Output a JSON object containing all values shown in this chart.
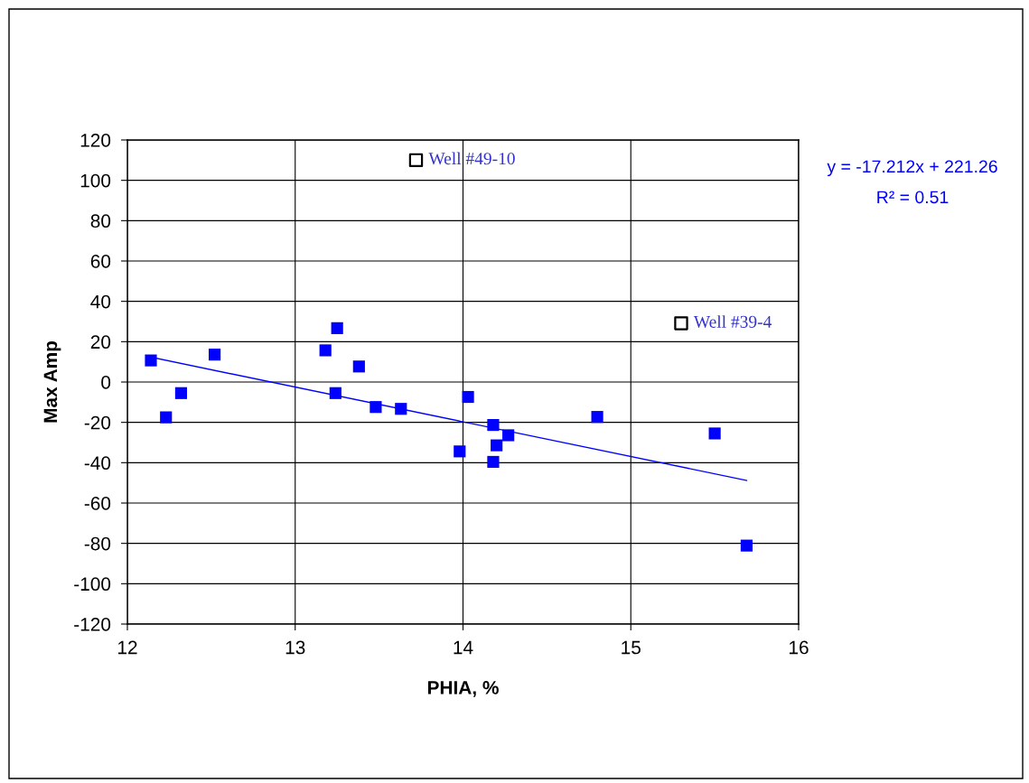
{
  "chart_data": {
    "type": "scatter",
    "xlabel": "PHIA, %",
    "ylabel": "Max Amp",
    "xlim": [
      12,
      16
    ],
    "xticks": [
      12,
      13,
      14,
      15,
      16
    ],
    "ylim": [
      -120,
      120
    ],
    "yticks": [
      -120,
      -100,
      -80,
      -60,
      -40,
      -20,
      0,
      20,
      40,
      60,
      80,
      100,
      120
    ],
    "grid": true,
    "marker": "square",
    "series": [
      {
        "color": "#0000ff",
        "x": [
          12.14,
          12.23,
          12.32,
          12.52,
          13.18,
          13.25,
          13.24,
          13.38,
          13.48,
          13.63,
          13.98,
          14.03,
          14.18,
          14.27,
          14.2,
          14.18,
          14.8,
          15.5,
          15.69
        ],
        "values": [
          10.7,
          -17.5,
          -5.5,
          13.6,
          15.7,
          26.7,
          -5.5,
          7.7,
          -12.4,
          -13.3,
          -34.4,
          -7.4,
          -21.3,
          -26.4,
          -31.4,
          -39.6,
          -17.3,
          -25.5,
          -81.1
        ]
      },
      {
        "color": "#000000",
        "marker": "square_open",
        "x": [
          13.72,
          15.3
        ],
        "values": [
          110,
          29.1
        ]
      },
      {
        "type": "line",
        "color": "#0000ff",
        "marker": "none",
        "line_style": "solid",
        "x": [
          12.14,
          15.69
        ],
        "values": [
          12.3,
          -48.8
        ]
      }
    ],
    "annotations": [
      {
        "text": "Well #49-10",
        "x": 13.72,
        "y": 110
      },
      {
        "text": "Well #39-4",
        "x": 15.3,
        "y": 29.1
      },
      "y = -17.212x + 221.26",
      "R² = 0.51"
    ]
  }
}
